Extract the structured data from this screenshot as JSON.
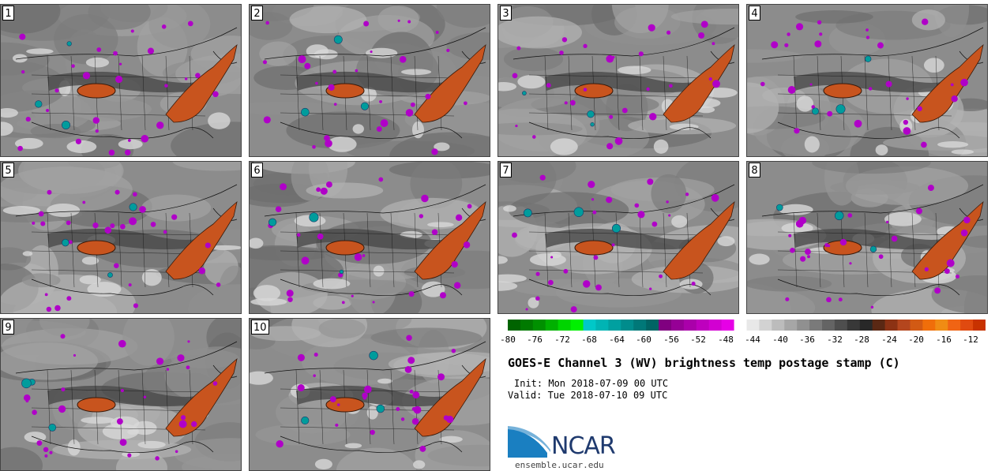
{
  "panels": [
    {
      "label": "1"
    },
    {
      "label": "2"
    },
    {
      "label": "3"
    },
    {
      "label": "4"
    },
    {
      "label": "5"
    },
    {
      "label": "6"
    },
    {
      "label": "7"
    },
    {
      "label": "8"
    },
    {
      "label": "9"
    },
    {
      "label": "10"
    }
  ],
  "colorbar": {
    "ticks": [
      "-80",
      "-76",
      "-72",
      "-68",
      "-64",
      "-60",
      "-56",
      "-52",
      "-48",
      "-44",
      "-40",
      "-36",
      "-32",
      "-28",
      "-24",
      "-20",
      "-16",
      "-12"
    ],
    "colors": [
      "#006400",
      "#007a00",
      "#009000",
      "#00b000",
      "#00d400",
      "#00f000",
      "#00c8c8",
      "#00b4b4",
      "#00a0a0",
      "#008c8c",
      "#007878",
      "#006464",
      "#800080",
      "#960096",
      "#aa00aa",
      "#be00be",
      "#d200d2",
      "#e600e6",
      "#ffffff",
      "#e8e8e8",
      "#d2d2d2",
      "#bcbcbc",
      "#a6a6a6",
      "#909090",
      "#7a7a7a",
      "#646464",
      "#4e4e4e",
      "#383838",
      "#282828",
      "#5a2814",
      "#8c3214",
      "#b4461e",
      "#d25a14",
      "#f06e0a",
      "#f08c14",
      "#f06414",
      "#e04a10",
      "#c83200"
    ]
  },
  "title": "GOES-E Channel 3 (WV) brightness temp postage stamp (C)",
  "init": "Init: Mon 2018-07-09 00 UTC",
  "valid": "Valid: Tue 2018-07-10 09 UTC",
  "logo": {
    "text": "NCAR",
    "site": "ensemble.ucar.edu"
  },
  "palette": {
    "dry": "#c8541e",
    "moist": "#b000c8",
    "cold": "#009c9c"
  }
}
